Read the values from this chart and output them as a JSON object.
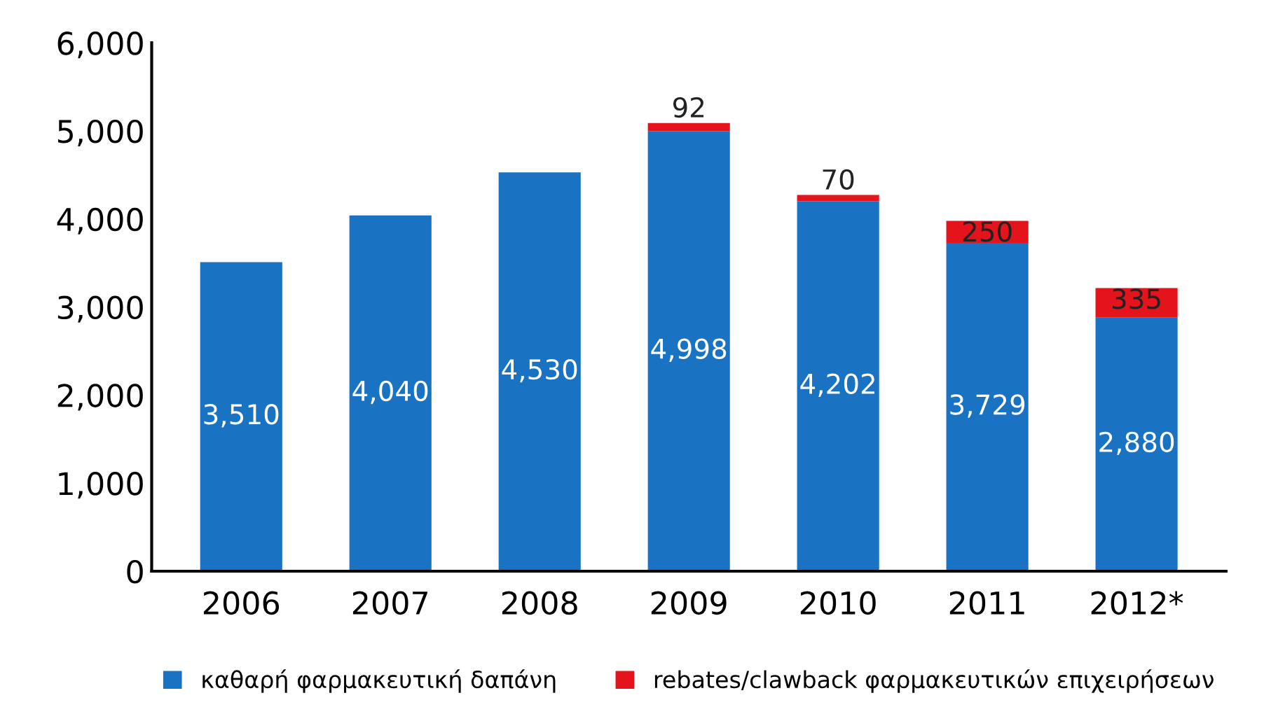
{
  "chart_data": {
    "type": "bar",
    "stacked": true,
    "categories": [
      "2006",
      "2007",
      "2008",
      "2009",
      "2010",
      "2011",
      "2012*"
    ],
    "series": [
      {
        "name": "καθαρή φαρμακευτική δαπάνη",
        "color": "#1a73c2",
        "values": [
          3510,
          4040,
          4530,
          4998,
          4202,
          3729,
          2880
        ],
        "value_labels": [
          "3,510",
          "4,040",
          "4,530",
          "4,998",
          "4,202",
          "3,729",
          "2,880"
        ]
      },
      {
        "name": "rebates/clawback φαρμακευτικών επιχειρήσεων",
        "color": "#e3141c",
        "values": [
          null,
          null,
          null,
          92,
          70,
          250,
          335
        ],
        "value_labels": [
          null,
          null,
          null,
          "92",
          "70",
          "250",
          "335"
        ]
      }
    ],
    "ylim": [
      0,
      6000
    ],
    "yticks": [
      {
        "value": 0,
        "label": "0"
      },
      {
        "value": 1000,
        "label": "1,000"
      },
      {
        "value": 2000,
        "label": "2,000"
      },
      {
        "value": 3000,
        "label": "3,000"
      },
      {
        "value": 4000,
        "label": "4,000"
      },
      {
        "value": 5000,
        "label": "5,000"
      },
      {
        "value": 6000,
        "label": "6,000"
      }
    ],
    "grid": false,
    "legend": "bottom"
  }
}
